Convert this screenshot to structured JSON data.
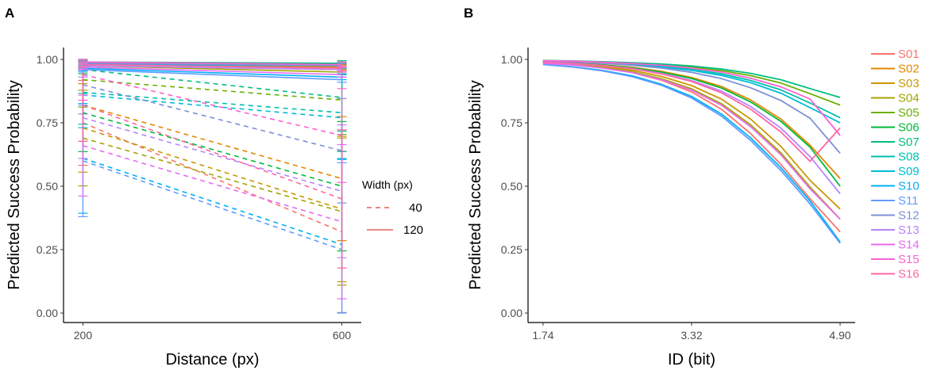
{
  "chart_data": [
    {
      "panel": "A",
      "type": "line",
      "xlabel": "Distance (px)",
      "ylabel": "Predicted Success Probability",
      "x": [
        200,
        600
      ],
      "x_ticks": [
        "200",
        "600"
      ],
      "xlim": [
        170,
        630
      ],
      "ylim": [
        0,
        1
      ],
      "y_ticks": [
        "0.00",
        "0.25",
        "0.50",
        "0.75",
        "1.00"
      ],
      "legend": {
        "title": "Width (px)",
        "entries": [
          {
            "label": "40",
            "linetype": "dashed"
          },
          {
            "label": "120",
            "linetype": "solid"
          }
        ]
      },
      "error_bars": true,
      "series": [
        {
          "name": "S01",
          "width": 40,
          "values": [
            0.75,
            0.32
          ]
        },
        {
          "name": "S02",
          "width": 40,
          "values": [
            0.82,
            0.53
          ]
        },
        {
          "name": "S03",
          "width": 40,
          "values": [
            0.73,
            0.41
          ]
        },
        {
          "name": "S04",
          "width": 40,
          "values": [
            0.69,
            0.4
          ]
        },
        {
          "name": "S05",
          "width": 40,
          "values": [
            0.92,
            0.84
          ]
        },
        {
          "name": "S06",
          "width": 40,
          "values": [
            0.79,
            0.5
          ]
        },
        {
          "name": "S07",
          "width": 40,
          "values": [
            0.96,
            0.85
          ]
        },
        {
          "name": "S08",
          "width": 40,
          "values": [
            0.87,
            0.79
          ]
        },
        {
          "name": "S09",
          "width": 40,
          "values": [
            0.86,
            0.77
          ]
        },
        {
          "name": "S10",
          "width": 40,
          "values": [
            0.61,
            0.27
          ]
        },
        {
          "name": "S11",
          "width": 40,
          "values": [
            0.6,
            0.25
          ]
        },
        {
          "name": "S12",
          "width": 40,
          "values": [
            0.9,
            0.64
          ]
        },
        {
          "name": "S13",
          "width": 40,
          "values": [
            0.77,
            0.48
          ]
        },
        {
          "name": "S14",
          "width": 40,
          "values": [
            0.66,
            0.36
          ]
        },
        {
          "name": "S15",
          "width": 40,
          "values": [
            0.94,
            0.7
          ]
        },
        {
          "name": "S16",
          "width": 40,
          "values": [
            0.82,
            0.45
          ]
        },
        {
          "name": "S01",
          "width": 120,
          "values": [
            0.985,
            0.97
          ]
        },
        {
          "name": "S02",
          "width": 120,
          "values": [
            0.98,
            0.97
          ]
        },
        {
          "name": "S03",
          "width": 120,
          "values": [
            0.975,
            0.96
          ]
        },
        {
          "name": "S04",
          "width": 120,
          "values": [
            0.975,
            0.95
          ]
        },
        {
          "name": "S05",
          "width": 120,
          "values": [
            0.985,
            0.98
          ]
        },
        {
          "name": "S06",
          "width": 120,
          "values": [
            0.98,
            0.975
          ]
        },
        {
          "name": "S07",
          "width": 120,
          "values": [
            0.99,
            0.985
          ]
        },
        {
          "name": "S08",
          "width": 120,
          "values": [
            0.985,
            0.98
          ]
        },
        {
          "name": "S09",
          "width": 120,
          "values": [
            0.98,
            0.975
          ]
        },
        {
          "name": "S10",
          "width": 120,
          "values": [
            0.965,
            0.93
          ]
        },
        {
          "name": "S11",
          "width": 120,
          "values": [
            0.96,
            0.92
          ]
        },
        {
          "name": "S12",
          "width": 120,
          "values": [
            0.985,
            0.975
          ]
        },
        {
          "name": "S13",
          "width": 120,
          "values": [
            0.975,
            0.96
          ]
        },
        {
          "name": "S14",
          "width": 120,
          "values": [
            0.97,
            0.94
          ]
        },
        {
          "name": "S15",
          "width": 120,
          "values": [
            0.99,
            0.98
          ]
        },
        {
          "name": "S16",
          "width": 120,
          "values": [
            0.98,
            0.965
          ]
        }
      ]
    },
    {
      "panel": "B",
      "type": "line",
      "xlabel": "ID (bit)",
      "ylabel": "Predicted Success Probability",
      "x_ticks": [
        "1.74",
        "3.32",
        "4.90"
      ],
      "x_tick_values": [
        1.74,
        3.32,
        4.9
      ],
      "xlim": [
        1.58,
        5.06
      ],
      "ylim": [
        0,
        1
      ],
      "y_ticks": [
        "0.00",
        "0.25",
        "0.50",
        "0.75",
        "1.00"
      ],
      "x": [
        1.74,
        2.06,
        2.37,
        2.69,
        3.0,
        3.32,
        3.64,
        3.95,
        4.27,
        4.58,
        4.9
      ],
      "series": [
        {
          "name": "S01",
          "values": [
            0.985,
            0.978,
            0.967,
            0.948,
            0.918,
            0.872,
            0.803,
            0.707,
            0.586,
            0.451,
            0.32
          ]
        },
        {
          "name": "S02",
          "values": [
            0.99,
            0.986,
            0.979,
            0.969,
            0.953,
            0.929,
            0.893,
            0.84,
            0.765,
            0.662,
            0.53
          ]
        },
        {
          "name": "S03",
          "values": [
            0.988,
            0.982,
            0.972,
            0.957,
            0.933,
            0.897,
            0.843,
            0.764,
            0.657,
            0.523,
            0.41
          ]
        },
        {
          "name": "S04",
          "values": [
            0.986,
            0.979,
            0.968,
            0.951,
            0.924,
            0.884,
            0.825,
            0.742,
            0.632,
            0.497,
            0.37
          ]
        },
        {
          "name": "S05",
          "values": [
            0.995,
            0.993,
            0.99,
            0.986,
            0.979,
            0.97,
            0.956,
            0.936,
            0.907,
            0.865,
            0.82
          ]
        },
        {
          "name": "S06",
          "values": [
            0.99,
            0.985,
            0.978,
            0.967,
            0.95,
            0.925,
            0.887,
            0.832,
            0.756,
            0.654,
            0.5
          ]
        },
        {
          "name": "S07",
          "values": [
            0.996,
            0.994,
            0.991,
            0.987,
            0.982,
            0.974,
            0.962,
            0.945,
            0.92,
            0.885,
            0.85
          ]
        },
        {
          "name": "S08",
          "values": [
            0.994,
            0.992,
            0.988,
            0.982,
            0.973,
            0.961,
            0.943,
            0.917,
            0.88,
            0.828,
            0.77
          ]
        },
        {
          "name": "S09",
          "values": [
            0.994,
            0.991,
            0.987,
            0.98,
            0.971,
            0.957,
            0.937,
            0.908,
            0.867,
            0.81,
            0.75
          ]
        },
        {
          "name": "S10",
          "values": [
            0.98,
            0.971,
            0.957,
            0.935,
            0.902,
            0.854,
            0.784,
            0.69,
            0.573,
            0.442,
            0.28
          ]
        },
        {
          "name": "S11",
          "values": [
            0.98,
            0.97,
            0.955,
            0.932,
            0.898,
            0.848,
            0.776,
            0.68,
            0.562,
            0.43,
            0.275
          ]
        },
        {
          "name": "S12",
          "values": [
            0.993,
            0.99,
            0.985,
            0.977,
            0.966,
            0.949,
            0.924,
            0.888,
            0.838,
            0.768,
            0.63
          ]
        },
        {
          "name": "S13",
          "values": [
            0.989,
            0.984,
            0.976,
            0.964,
            0.945,
            0.917,
            0.875,
            0.814,
            0.729,
            0.617,
            0.47
          ]
        },
        {
          "name": "S14",
          "values": [
            0.985,
            0.978,
            0.966,
            0.948,
            0.92,
            0.879,
            0.819,
            0.734,
            0.624,
            0.49,
            0.37
          ]
        },
        {
          "name": "S15",
          "values": [
            0.995,
            0.993,
            0.989,
            0.984,
            0.977,
            0.966,
            0.95,
            0.926,
            0.892,
            0.844,
            0.7
          ]
        },
        {
          "name": "S16",
          "values": [
            0.989,
            0.984,
            0.976,
            0.963,
            0.943,
            0.913,
            0.868,
            0.803,
            0.714,
            0.598,
            0.73
          ]
        }
      ]
    }
  ],
  "panel_letters": {
    "a": "A",
    "b": "B"
  },
  "legend_a": {
    "title": "Width (px)",
    "label_40": "40",
    "label_120": "120"
  },
  "subjects": [
    "S01",
    "S02",
    "S03",
    "S04",
    "S05",
    "S06",
    "S07",
    "S08",
    "S09",
    "S10",
    "S11",
    "S12",
    "S13",
    "S14",
    "S15",
    "S16"
  ],
  "colors": {
    "S01": "#F8766D",
    "S02": "#E58700",
    "S03": "#C99800",
    "S04": "#A3A500",
    "S05": "#6BB100",
    "S06": "#00BA38",
    "S07": "#00BF7D",
    "S08": "#00C0AF",
    "S09": "#00BCD8",
    "S10": "#00B0F6",
    "S11": "#619CFF",
    "S12": "#7C8FD6",
    "S13": "#B983FF",
    "S14": "#E76BF3",
    "S15": "#FD61D1",
    "S16": "#FF67A4",
    "legend_gray": "#E0605A"
  }
}
